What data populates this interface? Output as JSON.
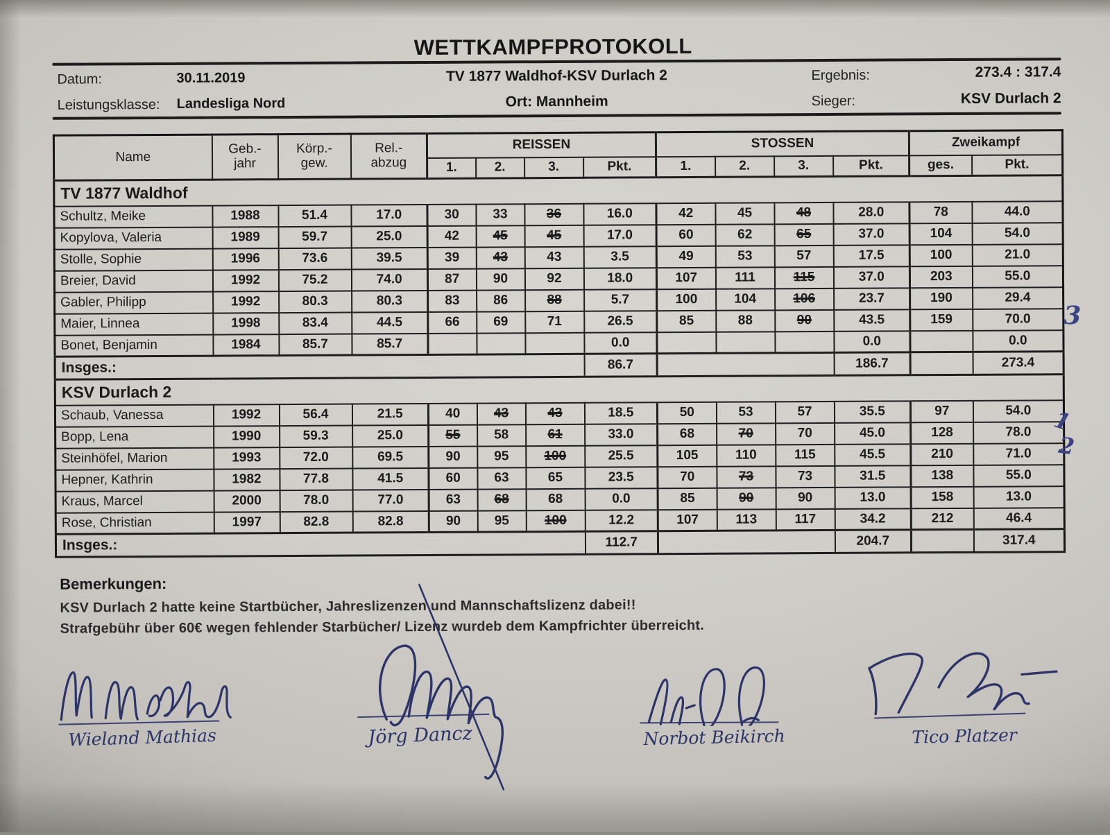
{
  "title": "WETTKAMPFPROTOKOLL",
  "meta": {
    "datum_label": "Datum:",
    "datum": "30.11.2019",
    "match": "TV 1877 Waldhof-KSV Durlach 2",
    "ergebnis_label": "Ergebnis:",
    "ergebnis": "273.4 : 317.4",
    "klasse_label": "Leistungsklasse:",
    "klasse": "Landesliga Nord",
    "ort": "Ort: Mannheim",
    "sieger_label": "Sieger:",
    "sieger": "KSV Durlach 2"
  },
  "table": {
    "headers": {
      "name": "Name",
      "geb": "Geb.-\njahr",
      "koerp": "Körp.-\ngew.",
      "rel": "Rel.-\nabzug",
      "reissen": "REISSEN",
      "stossen": "STOSSEN",
      "zweikampf": "Zweikampf",
      "sub": [
        "1.",
        "2.",
        "3.",
        "Pkt.",
        "1.",
        "2.",
        "3.",
        "Pkt.",
        "ges.",
        "Pkt."
      ]
    },
    "teams": [
      {
        "name": "TV 1877 Waldhof",
        "rows": [
          {
            "name": "Schultz, Meike",
            "geb": "1988",
            "kg": "51.4",
            "rel": "17.0",
            "r": [
              {
                "t": "30"
              },
              {
                "t": "33"
              },
              {
                "t": "36",
                "s": true
              }
            ],
            "rp": "16.0",
            "st": [
              {
                "t": "42"
              },
              {
                "t": "45"
              },
              {
                "t": "48",
                "s": true
              }
            ],
            "sp": "28.0",
            "ges": "78",
            "zp": "44.0"
          },
          {
            "name": "Kopylova, Valeria",
            "geb": "1989",
            "kg": "59.7",
            "rel": "25.0",
            "r": [
              {
                "t": "42"
              },
              {
                "t": "45",
                "s": true
              },
              {
                "t": "45",
                "s": true
              }
            ],
            "rp": "17.0",
            "st": [
              {
                "t": "60"
              },
              {
                "t": "62"
              },
              {
                "t": "65",
                "s": true
              }
            ],
            "sp": "37.0",
            "ges": "104",
            "zp": "54.0"
          },
          {
            "name": "Stolle, Sophie",
            "geb": "1996",
            "kg": "73.6",
            "rel": "39.5",
            "r": [
              {
                "t": "39"
              },
              {
                "t": "43",
                "s": true
              },
              {
                "t": "43"
              }
            ],
            "rp": "3.5",
            "st": [
              {
                "t": "49"
              },
              {
                "t": "53"
              },
              {
                "t": "57"
              }
            ],
            "sp": "17.5",
            "ges": "100",
            "zp": "21.0"
          },
          {
            "name": "Breier, David",
            "geb": "1992",
            "kg": "75.2",
            "rel": "74.0",
            "r": [
              {
                "t": "87"
              },
              {
                "t": "90"
              },
              {
                "t": "92"
              }
            ],
            "rp": "18.0",
            "st": [
              {
                "t": "107"
              },
              {
                "t": "111"
              },
              {
                "t": "115",
                "s": true
              }
            ],
            "sp": "37.0",
            "ges": "203",
            "zp": "55.0"
          },
          {
            "name": "Gabler, Philipp",
            "geb": "1992",
            "kg": "80.3",
            "rel": "80.3",
            "r": [
              {
                "t": "83"
              },
              {
                "t": "86"
              },
              {
                "t": "88",
                "s": true
              }
            ],
            "rp": "5.7",
            "st": [
              {
                "t": "100"
              },
              {
                "t": "104"
              },
              {
                "t": "106",
                "s": true
              }
            ],
            "sp": "23.7",
            "ges": "190",
            "zp": "29.4"
          },
          {
            "name": "Maier, Linnea",
            "geb": "1998",
            "kg": "83.4",
            "rel": "44.5",
            "r": [
              {
                "t": "66"
              },
              {
                "t": "69"
              },
              {
                "t": "71"
              }
            ],
            "rp": "26.5",
            "st": [
              {
                "t": "85"
              },
              {
                "t": "88"
              },
              {
                "t": "90",
                "s": true
              }
            ],
            "sp": "43.5",
            "ges": "159",
            "zp": "70.0"
          },
          {
            "name": "Bonet, Benjamin",
            "geb": "1984",
            "kg": "85.7",
            "rel": "85.7",
            "r": [
              {
                "t": ""
              },
              {
                "t": ""
              },
              {
                "t": ""
              }
            ],
            "rp": "0.0",
            "st": [
              {
                "t": ""
              },
              {
                "t": ""
              },
              {
                "t": ""
              }
            ],
            "sp": "0.0",
            "ges": "",
            "zp": "0.0"
          }
        ],
        "total": {
          "label": "Insges.:",
          "rp": "86.7",
          "sp": "186.7",
          "zp": "273.4"
        }
      },
      {
        "name": "KSV Durlach 2",
        "rows": [
          {
            "name": "Schaub, Vanessa",
            "geb": "1992",
            "kg": "56.4",
            "rel": "21.5",
            "r": [
              {
                "t": "40"
              },
              {
                "t": "43",
                "s": true
              },
              {
                "t": "43",
                "s": true
              }
            ],
            "rp": "18.5",
            "st": [
              {
                "t": "50"
              },
              {
                "t": "53"
              },
              {
                "t": "57"
              }
            ],
            "sp": "35.5",
            "ges": "97",
            "zp": "54.0"
          },
          {
            "name": "Bopp, Lena",
            "geb": "1990",
            "kg": "59.3",
            "rel": "25.0",
            "r": [
              {
                "t": "55",
                "s": true
              },
              {
                "t": "58"
              },
              {
                "t": "61",
                "s": true
              }
            ],
            "rp": "33.0",
            "st": [
              {
                "t": "68"
              },
              {
                "t": "70",
                "s": true
              },
              {
                "t": "70"
              }
            ],
            "sp": "45.0",
            "ges": "128",
            "zp": "78.0"
          },
          {
            "name": "Steinhöfel, Marion",
            "geb": "1993",
            "kg": "72.0",
            "rel": "69.5",
            "r": [
              {
                "t": "90"
              },
              {
                "t": "95"
              },
              {
                "t": "100",
                "s": true
              }
            ],
            "rp": "25.5",
            "st": [
              {
                "t": "105"
              },
              {
                "t": "110"
              },
              {
                "t": "115"
              }
            ],
            "sp": "45.5",
            "ges": "210",
            "zp": "71.0"
          },
          {
            "name": "Hepner, Kathrin",
            "geb": "1982",
            "kg": "77.8",
            "rel": "41.5",
            "r": [
              {
                "t": "60"
              },
              {
                "t": "63"
              },
              {
                "t": "65"
              }
            ],
            "rp": "23.5",
            "st": [
              {
                "t": "70"
              },
              {
                "t": "73",
                "s": true
              },
              {
                "t": "73"
              }
            ],
            "sp": "31.5",
            "ges": "138",
            "zp": "55.0"
          },
          {
            "name": "Kraus, Marcel",
            "geb": "2000",
            "kg": "78.0",
            "rel": "77.0",
            "r": [
              {
                "t": "63"
              },
              {
                "t": "68",
                "s": true
              },
              {
                "t": "68"
              }
            ],
            "rp": "0.0",
            "st": [
              {
                "t": "85"
              },
              {
                "t": "90",
                "s": true
              },
              {
                "t": "90"
              }
            ],
            "sp": "13.0",
            "ges": "158",
            "zp": "13.0"
          },
          {
            "name": "Rose, Christian",
            "geb": "1997",
            "kg": "82.8",
            "rel": "82.8",
            "r": [
              {
                "t": "90"
              },
              {
                "t": "95"
              },
              {
                "t": "100",
                "s": true
              }
            ],
            "rp": "12.2",
            "st": [
              {
                "t": "107"
              },
              {
                "t": "113"
              },
              {
                "t": "117"
              }
            ],
            "sp": "34.2",
            "ges": "212",
            "zp": "46.4"
          }
        ],
        "total": {
          "label": "Insges.:",
          "rp": "112.7",
          "sp": "204.7",
          "zp": "317.4"
        }
      }
    ]
  },
  "remarks": {
    "label": "Bemerkungen:",
    "lines": [
      "KSV Durlach 2 hatte keine Startbücher, Jahreslizenzen und Mannschaftslizenz dabei!!",
      "Strafgebühr über 60€ wegen fehlender Starbücher/ Lizenz wurdeb dem Kampfrichter überreicht."
    ]
  },
  "signatures": [
    {
      "name": "Wieland Mathias"
    },
    {
      "name": "Jörg Dancz"
    },
    {
      "name": "Norbot Beikirch"
    },
    {
      "name": "Tico Platzer"
    }
  ],
  "annotations": {
    "marks": [
      "3",
      "1",
      "2"
    ]
  }
}
